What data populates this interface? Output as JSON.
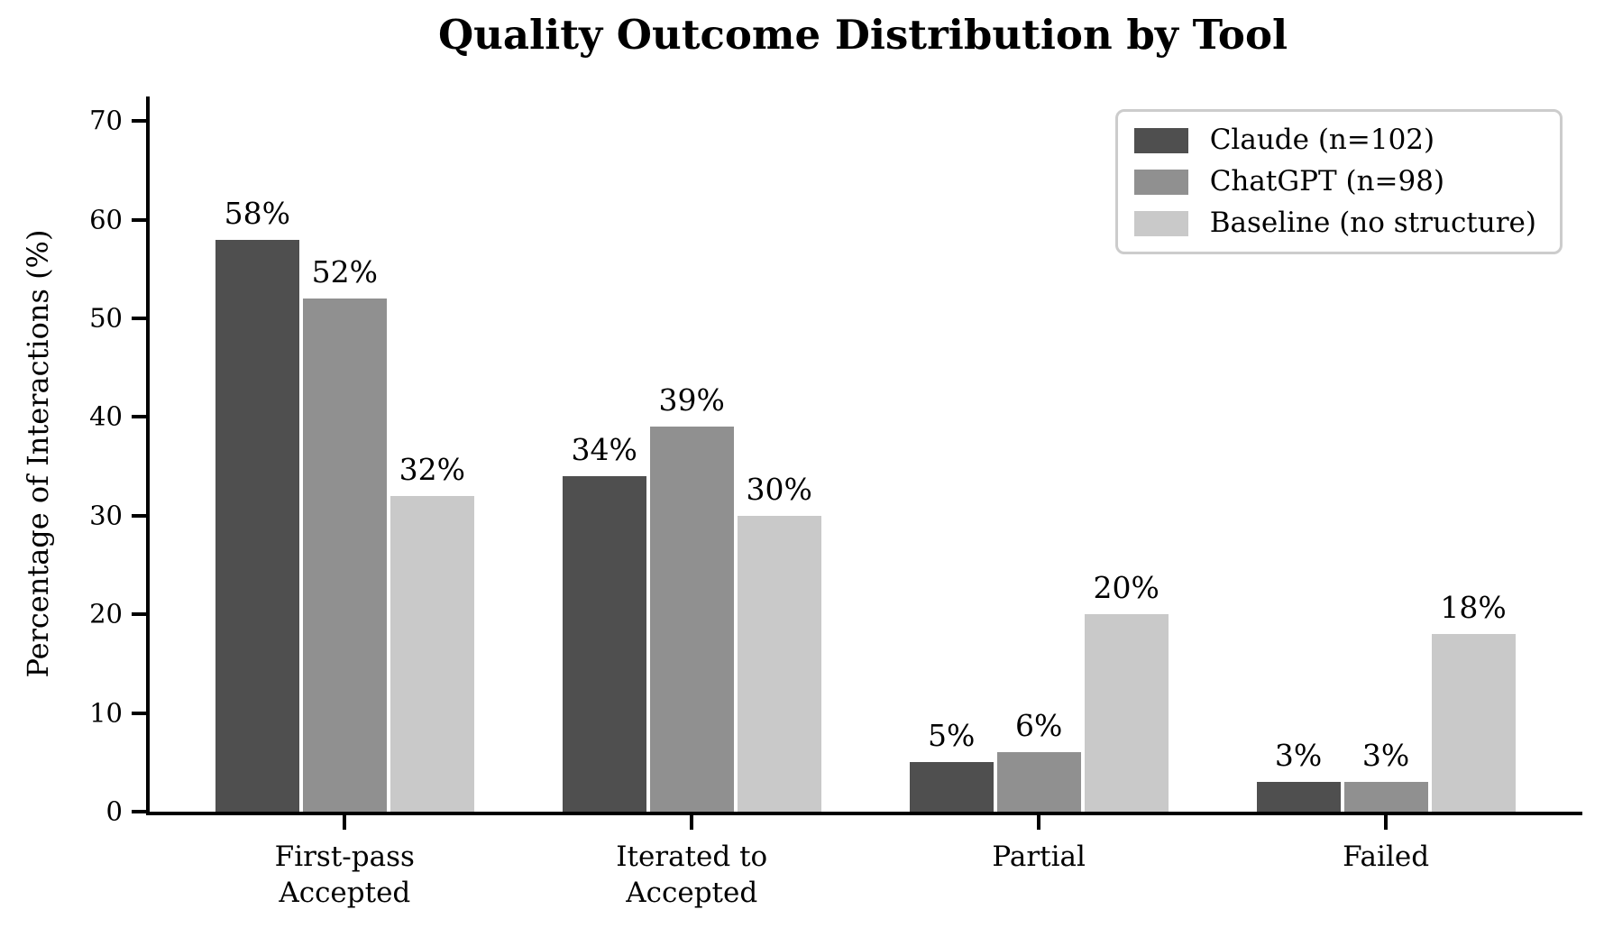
{
  "chart_data": {
    "type": "bar",
    "title": "Quality Outcome Distribution by Tool",
    "xlabel": "",
    "ylabel": "Percentage of Interactions (%)",
    "categories": [
      "First-pass\nAccepted",
      "Iterated to\nAccepted",
      "Partial",
      "Failed"
    ],
    "series": [
      {
        "name": "Claude (n=102)",
        "color": "#4f4f4f",
        "values": [
          58,
          34,
          5,
          3
        ],
        "labels": [
          "58%",
          "34%",
          "5%",
          "3%"
        ]
      },
      {
        "name": "ChatGPT (n=98)",
        "color": "#909090",
        "values": [
          52,
          39,
          6,
          3
        ],
        "labels": [
          "52%",
          "39%",
          "6%",
          "3%"
        ]
      },
      {
        "name": "Baseline (no structure)",
        "color": "#c9c9c9",
        "values": [
          32,
          30,
          20,
          18
        ],
        "labels": [
          "32%",
          "30%",
          "20%",
          "18%"
        ]
      }
    ],
    "ylim": [
      0,
      72.5
    ],
    "yticks": [
      0,
      10,
      20,
      30,
      40,
      50,
      60,
      70
    ],
    "ytick_labels": [
      "0",
      "10",
      "20",
      "30",
      "40",
      "50",
      "60",
      "70"
    ],
    "grid": false,
    "legend_position": "top-right",
    "axis_color": "#000000",
    "legend_border_color": "#cccccc"
  }
}
